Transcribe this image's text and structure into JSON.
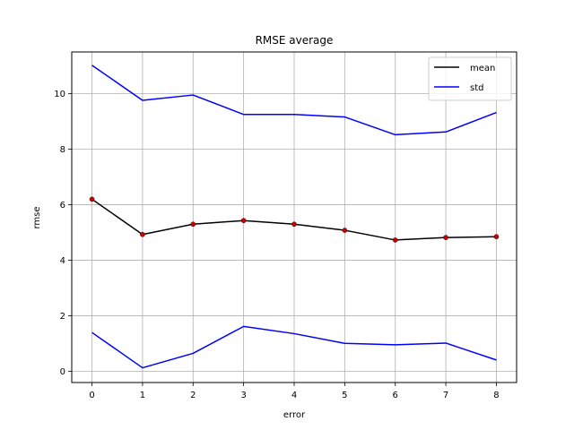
{
  "chart_data": {
    "type": "line",
    "title": "RMSE average",
    "xlabel": "error",
    "ylabel": "rmse",
    "x": [
      0,
      1,
      2,
      3,
      4,
      5,
      6,
      7,
      8
    ],
    "xlim": [
      -0.4,
      8.4
    ],
    "ylim": [
      -0.4,
      11.5
    ],
    "xticks": [
      0,
      1,
      2,
      3,
      4,
      5,
      6,
      7,
      8
    ],
    "yticks": [
      0,
      2,
      4,
      6,
      8,
      10
    ],
    "grid": true,
    "legend_position": "top-right",
    "series": [
      {
        "name": "mean",
        "color": "#000000",
        "markers": true,
        "marker_color": "#cc0000",
        "values": [
          6.2,
          4.93,
          5.3,
          5.43,
          5.3,
          5.08,
          4.73,
          4.82,
          4.85
        ]
      },
      {
        "name": "std",
        "color": "#0000ff",
        "markers": false,
        "values": [
          11.02,
          9.76,
          9.95,
          9.25,
          9.25,
          9.16,
          8.52,
          8.62,
          9.32
        ]
      },
      {
        "name": "",
        "color": "#0000ff",
        "markers": false,
        "values": [
          1.4,
          0.13,
          0.65,
          1.62,
          1.36,
          1.01,
          0.96,
          1.02,
          0.41
        ]
      }
    ]
  }
}
